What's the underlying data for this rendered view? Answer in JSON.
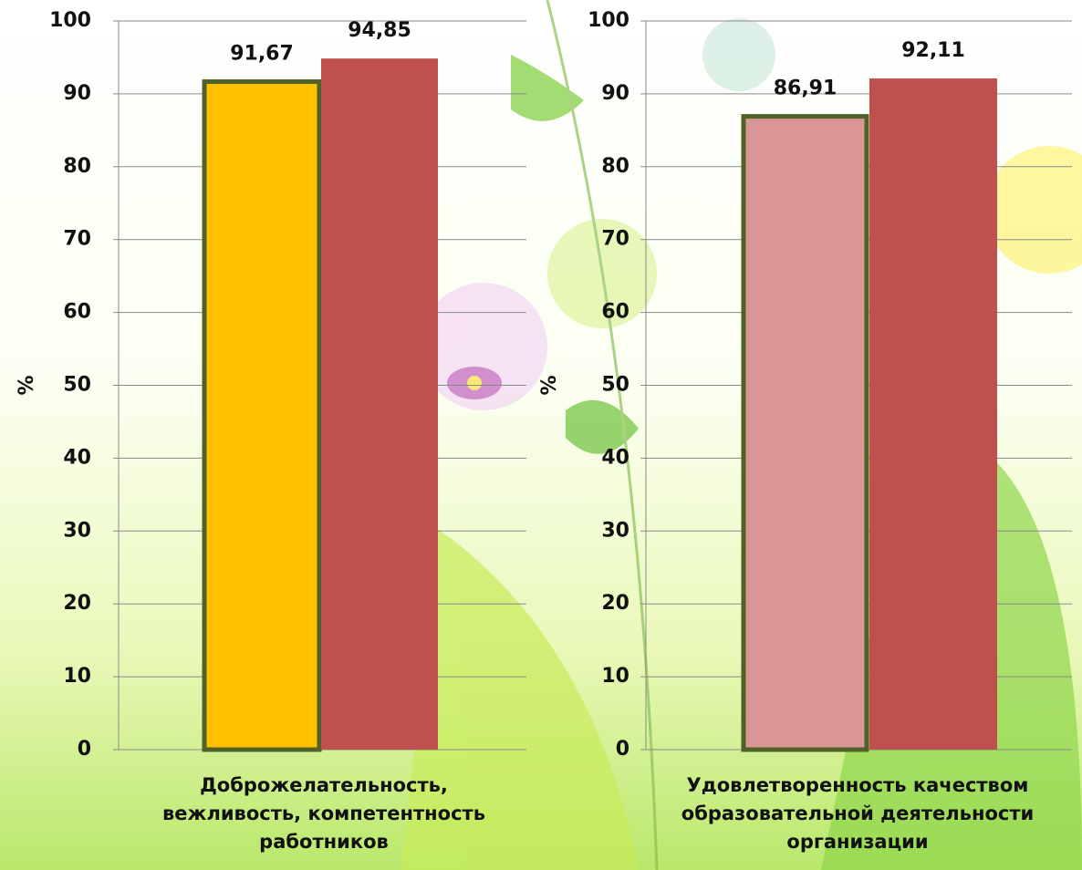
{
  "chart_data": [
    {
      "type": "bar",
      "ylabel": "%",
      "categories": [
        "Доброжелательность, вежливость, компетентность работников"
      ],
      "series": [
        {
          "color": "#FFC000",
          "edgecolor": "#4F6228",
          "values": [
            91.67
          ],
          "value_labels": [
            "91,67"
          ]
        },
        {
          "color": "#C0504D",
          "values": [
            94.85
          ],
          "value_labels": [
            "94,85"
          ]
        }
      ],
      "ylim": [
        0,
        100
      ],
      "yticks": [
        0,
        10,
        20,
        30,
        40,
        50,
        60,
        70,
        80,
        90,
        100
      ],
      "grid": true
    },
    {
      "type": "bar",
      "ylabel": "%",
      "categories": [
        "Удовлетворенность качеством образовательной деятельности организации"
      ],
      "series": [
        {
          "color": "#D99694",
          "edgecolor": "#4F6228",
          "values": [
            86.91
          ],
          "value_labels": [
            "86,91"
          ]
        },
        {
          "color": "#C0504D",
          "values": [
            92.11
          ],
          "value_labels": [
            "92,11"
          ]
        }
      ],
      "ylim": [
        0,
        100
      ],
      "yticks": [
        0,
        10,
        20,
        30,
        40,
        50,
        60,
        70,
        80,
        90,
        100
      ],
      "grid": true
    }
  ]
}
